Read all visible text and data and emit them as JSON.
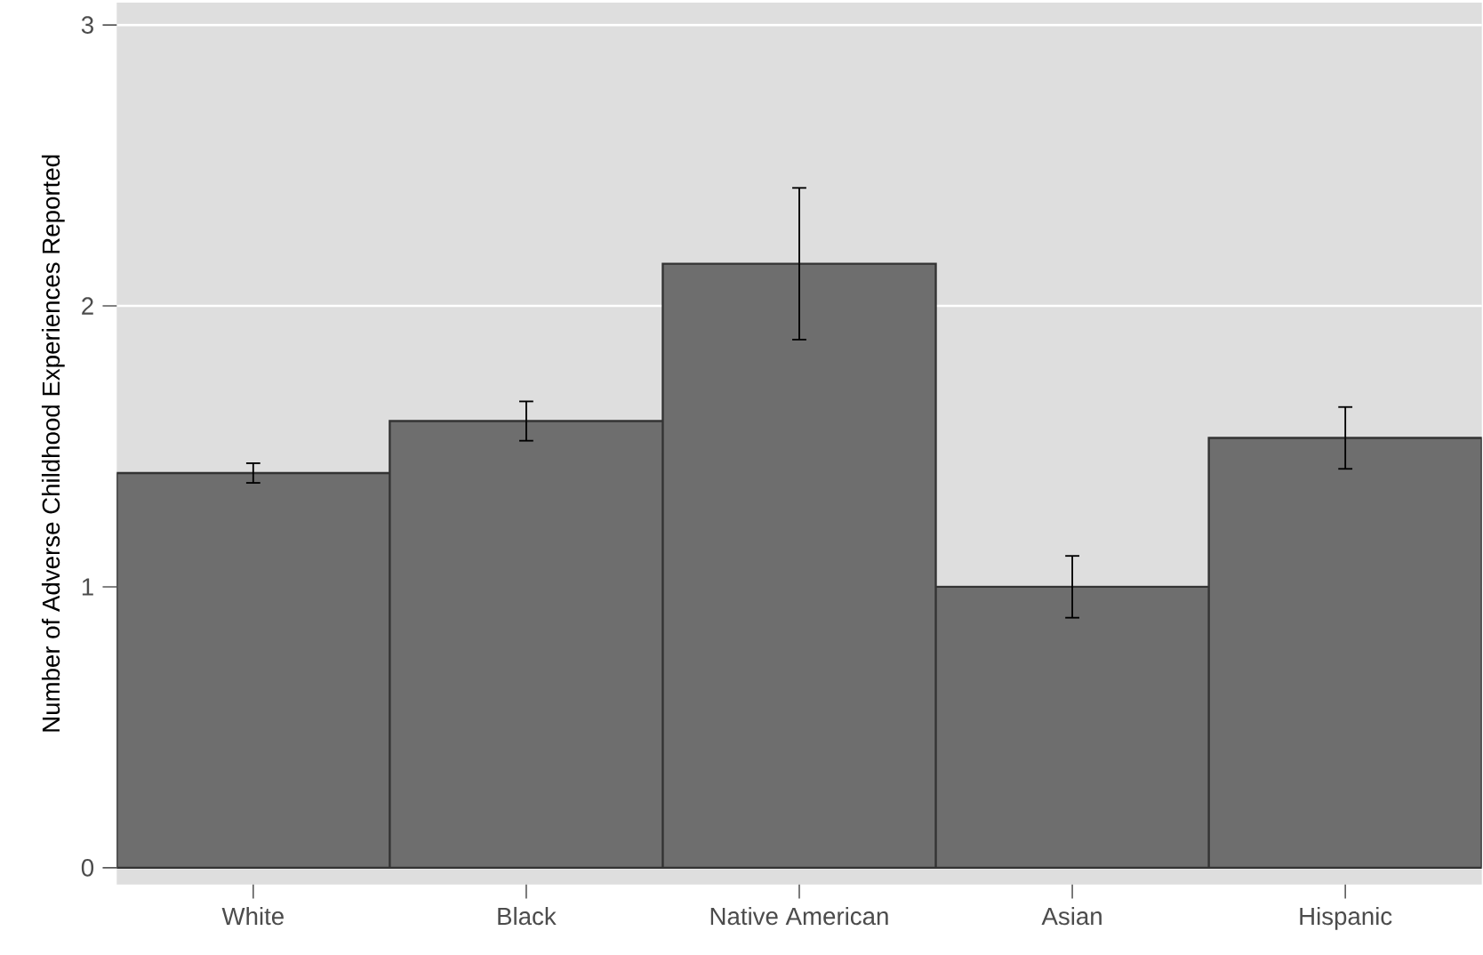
{
  "chart_data": {
    "type": "bar",
    "ylabel": "Number of Adverse Childhood Experiences Reported",
    "categories": [
      "White",
      "Black",
      "Native American",
      "Asian",
      "Hispanic"
    ],
    "values": [
      1.405,
      1.59,
      2.15,
      1.0,
      1.53
    ],
    "errors": [
      [
        1.37,
        1.44
      ],
      [
        1.52,
        1.66
      ],
      [
        1.88,
        2.42
      ],
      [
        0.89,
        1.11
      ],
      [
        1.42,
        1.64
      ]
    ],
    "color": "#6e6e6e",
    "ylim": [
      -0.06,
      3.08
    ],
    "yticks": [
      0,
      1,
      2,
      3
    ],
    "grid": "y"
  }
}
